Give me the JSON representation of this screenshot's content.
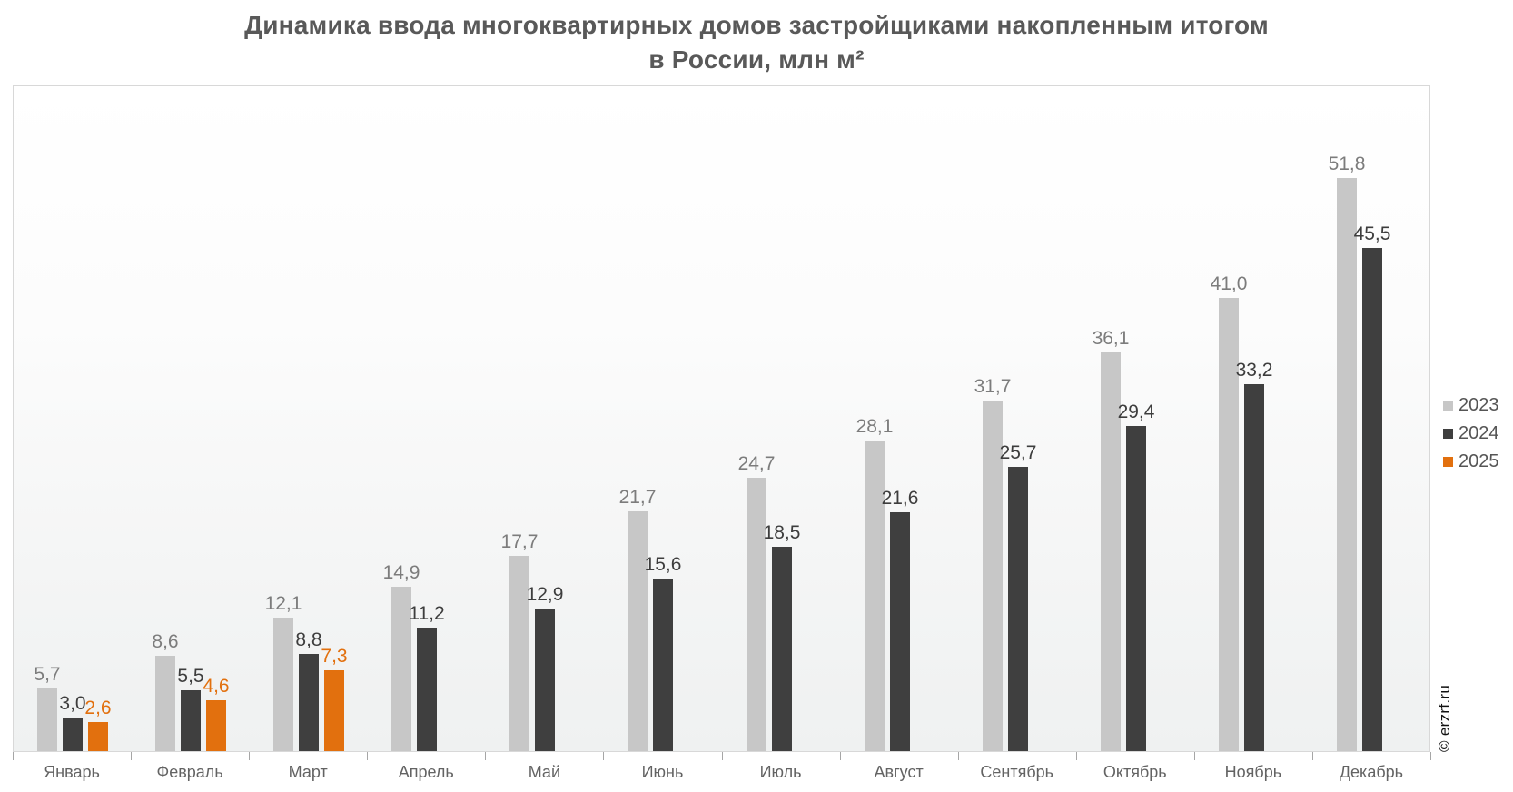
{
  "title": "Динамика ввода многоквартирных домов застройщиками накопленным итогом в России, млн м²",
  "watermark": "© erzrf.ru",
  "chart_data": {
    "type": "bar",
    "title": "Динамика ввода многоквартирных домов застройщиками накопленным итогом в России, млн м²",
    "ylabel": "млн м²",
    "xlabel": "",
    "ylim": [
      0,
      60.3
    ],
    "grid": false,
    "legend_position": "right",
    "value_labels": true,
    "decimal_separator": ",",
    "categories": [
      "Январь",
      "Февраль",
      "Март",
      "Апрель",
      "Май",
      "Июнь",
      "Июль",
      "Август",
      "Сентябрь",
      "Октябрь",
      "Ноябрь",
      "Декабрь"
    ],
    "series": [
      {
        "name": "2023",
        "color": "#c7c7c7",
        "label_color": "#7c7c7c",
        "values": [
          5.7,
          8.6,
          12.1,
          14.9,
          17.7,
          21.7,
          24.7,
          28.1,
          31.7,
          36.1,
          41.0,
          51.8
        ]
      },
      {
        "name": "2024",
        "color": "#3f3f3f",
        "label_color": "#3d3d3d",
        "values": [
          3.0,
          5.5,
          8.8,
          11.2,
          12.9,
          15.6,
          18.5,
          21.6,
          25.7,
          29.4,
          33.2,
          45.5
        ]
      },
      {
        "name": "2025",
        "color": "#e2700e",
        "label_color": "#e2700e",
        "values": [
          2.6,
          4.6,
          7.3,
          null,
          null,
          null,
          null,
          null,
          null,
          null,
          null,
          null
        ]
      }
    ]
  }
}
